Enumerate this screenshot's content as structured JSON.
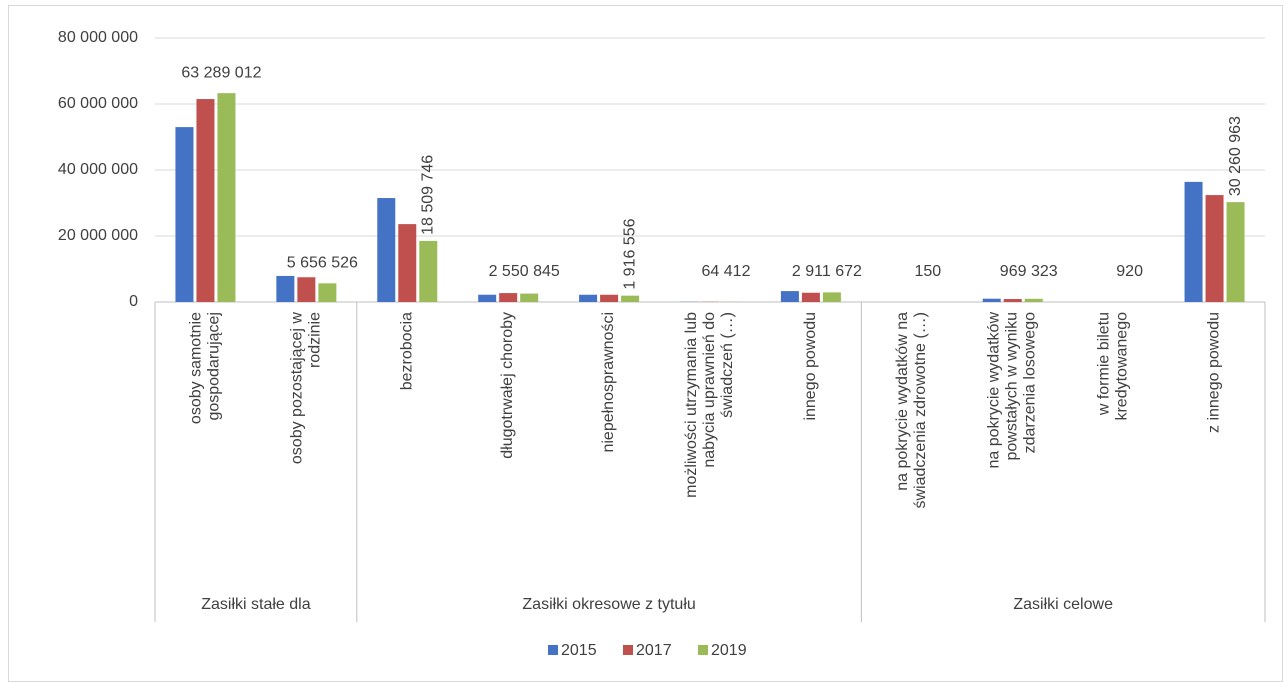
{
  "chart_data": {
    "type": "bar",
    "groups": [
      {
        "label": "Zasiłki stałe dla",
        "categories": [
          "osoby samotnie gospodarującej",
          "osoby pozostającej w rodzinie"
        ]
      },
      {
        "label": "Zasiłki okresowe z tytułu",
        "categories": [
          "bezrobocia",
          "długotrwałej choroby",
          "niepełnosprawności",
          "możliwości utrzymania lub nabycia uprawnień do świadczeń (…)",
          "innego powodu"
        ]
      },
      {
        "label": "Zasiłki celowe",
        "categories": [
          "na pokrycie wydatków na świadczenia zdrowotne (…)",
          "na pokrycie wydatków powstałych w wyniku zdarzenia losowego",
          "w formie biletu kredytowanego",
          "z innego powodu"
        ]
      }
    ],
    "series": [
      {
        "name": "2015",
        "color": "#4472c4",
        "values": [
          53000000,
          7900000,
          31500000,
          2200000,
          2200000,
          80000,
          3300000,
          500,
          1000000,
          1000,
          36400000
        ]
      },
      {
        "name": "2017",
        "color": "#c0504d",
        "values": [
          61500000,
          7500000,
          23600000,
          2700000,
          2200000,
          70000,
          2800000,
          300,
          900000,
          1000,
          32400000
        ]
      },
      {
        "name": "2019",
        "color": "#9bbb59",
        "values": [
          63289012,
          5656526,
          18509746,
          2550845,
          1916556,
          64412,
          2911672,
          150,
          969323,
          920,
          30260963
        ],
        "value_labels": [
          "63 289 012",
          "5 656 526",
          "18 509 746",
          "2 550 845",
          "1 916 556",
          "64 412",
          "2 911 672",
          "150",
          "969 323",
          "920",
          "30 260 963"
        ]
      }
    ],
    "ylim": [
      0,
      80000000
    ],
    "yticks": [
      0,
      {
        "value": 20000000,
        "label": "20 000 000"
      },
      {
        "value": 40000000,
        "label": "40 000 000"
      },
      {
        "value": 60000000,
        "label": "60 000 000"
      },
      {
        "value": 80000000,
        "label": "80 000 000"
      }
    ],
    "grid": true,
    "legend": "bottom"
  }
}
